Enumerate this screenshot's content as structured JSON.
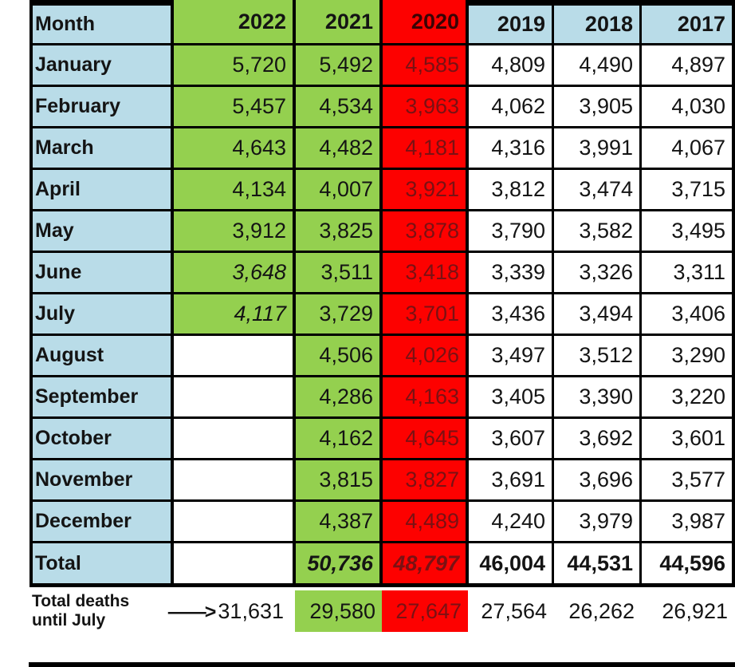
{
  "colors": {
    "header_blue": "#b9dce8",
    "green": "#94d04f",
    "red": "#fd0100",
    "dark_red_text": "#7a1113",
    "dark_red_header": "#3a0405",
    "text_black": "#141414",
    "border_black": "#000000"
  },
  "table": {
    "columns": [
      "Month",
      "2022",
      "2021",
      "2020",
      "2019",
      "2018",
      "2017"
    ],
    "rows": [
      {
        "month": "January",
        "values": [
          "5,720",
          "5,492",
          "4,585",
          "4,809",
          "4,490",
          "4,897"
        ]
      },
      {
        "month": "February",
        "values": [
          "5,457",
          "4,534",
          "3,963",
          "4,062",
          "3,905",
          "4,030"
        ]
      },
      {
        "month": "March",
        "values": [
          "4,643",
          "4,482",
          "4,181",
          "4,316",
          "3,991",
          "4,067"
        ]
      },
      {
        "month": "April",
        "values": [
          "4,134",
          "4,007",
          "3,921",
          "3,812",
          "3,474",
          "3,715"
        ]
      },
      {
        "month": "May",
        "values": [
          "3,912",
          "3,825",
          "3,878",
          "3,790",
          "3,582",
          "3,495"
        ]
      },
      {
        "month": "June",
        "values": [
          "3,648",
          "3,511",
          "3,418",
          "3,339",
          "3,326",
          "3,311"
        ]
      },
      {
        "month": "July",
        "values": [
          "4,117",
          "3,729",
          "3,701",
          "3,436",
          "3,494",
          "3,406"
        ]
      },
      {
        "month": "August",
        "values": [
          "",
          "4,506",
          "4,026",
          "3,497",
          "3,512",
          "3,290"
        ]
      },
      {
        "month": "September",
        "values": [
          "",
          "4,286",
          "4,163",
          "3,405",
          "3,390",
          "3,220"
        ]
      },
      {
        "month": "October",
        "values": [
          "",
          "4,162",
          "4,645",
          "3,607",
          "3,692",
          "3,601"
        ]
      },
      {
        "month": "November",
        "values": [
          "",
          "3,815",
          "3,827",
          "3,691",
          "3,696",
          "3,577"
        ]
      },
      {
        "month": "December",
        "values": [
          "",
          "4,387",
          "4,489",
          "4,240",
          "3,979",
          "3,987"
        ]
      },
      {
        "month": "Total",
        "values": [
          "",
          "50,736",
          "48,797",
          "46,004",
          "44,531",
          "44,596"
        ]
      }
    ]
  },
  "summary": {
    "label_line1": "Total deaths",
    "label_line2": "until July",
    "arrow": "——>",
    "values": [
      "31,631",
      "29,580",
      "27,647",
      "27,564",
      "26,262",
      "26,921"
    ]
  },
  "chart_data": {
    "type": "table",
    "categories": [
      "January",
      "February",
      "March",
      "April",
      "May",
      "June",
      "July",
      "August",
      "September",
      "October",
      "November",
      "December"
    ],
    "series": [
      {
        "name": "2022",
        "values": [
          5720,
          5457,
          4643,
          4134,
          3912,
          3648,
          4117,
          null,
          null,
          null,
          null,
          null
        ],
        "total": null,
        "total_until_july": 31631
      },
      {
        "name": "2021",
        "values": [
          5492,
          4534,
          4482,
          4007,
          3825,
          3511,
          3729,
          4506,
          4286,
          4162,
          3815,
          4387
        ],
        "total": 50736,
        "total_until_july": 29580
      },
      {
        "name": "2020",
        "values": [
          4585,
          3963,
          4181,
          3921,
          3878,
          3418,
          3701,
          4026,
          4163,
          4645,
          3827,
          4489
        ],
        "total": 48797,
        "total_until_july": 27647
      },
      {
        "name": "2019",
        "values": [
          4809,
          4062,
          4316,
          3812,
          3790,
          3339,
          3436,
          3497,
          3405,
          3607,
          3691,
          4240
        ],
        "total": 46004,
        "total_until_july": 27564
      },
      {
        "name": "2018",
        "values": [
          4490,
          3905,
          3991,
          3474,
          3582,
          3326,
          3494,
          3512,
          3390,
          3692,
          3696,
          3979
        ],
        "total": 44531,
        "total_until_july": 26262
      },
      {
        "name": "2017",
        "values": [
          4897,
          4030,
          4067,
          3715,
          3495,
          3311,
          3406,
          3290,
          3220,
          3601,
          3577,
          3987
        ],
        "total": 44596,
        "total_until_july": 26921
      }
    ],
    "legend_position": "none",
    "highlight_colors": {
      "2022_jan_to_jul": "green",
      "2021": "green",
      "2020": "red",
      "month_and_year_labels": "light-blue"
    }
  }
}
